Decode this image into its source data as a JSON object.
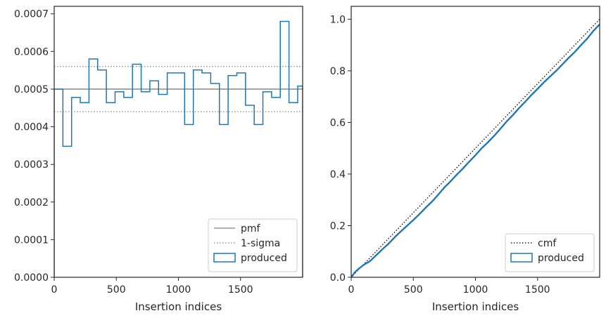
{
  "chart_data": [
    {
      "type": "histogram-step",
      "xlabel": "Insertion indices",
      "ylabel": "",
      "xlim": [
        0,
        2000
      ],
      "ylim": [
        0,
        0.00072
      ],
      "xticks": [
        0,
        500,
        1000,
        1500
      ],
      "xtick_labels": [
        "0",
        "500",
        "1000",
        "1500"
      ],
      "yticks": [
        0,
        0.0001,
        0.0002,
        0.0003,
        0.0004,
        0.0005,
        0.0006,
        0.0007
      ],
      "ytick_labels": [
        "0.0000",
        "0.0001",
        "0.0002",
        "0.0003",
        "0.0004",
        "0.0005",
        "0.0006",
        "0.0007"
      ],
      "grid": false,
      "legend_position": "lower-right",
      "legend": [
        "pmf",
        "1-sigma",
        "produced"
      ],
      "series": [
        {
          "name": "pmf",
          "style": "solid",
          "color": "#7f7f7f",
          "y": 0.0005
        },
        {
          "name": "1-sigma",
          "style": "dotted",
          "color": "#7f7f7f",
          "y": [
            0.00044,
            0.00056
          ]
        },
        {
          "name": "produced",
          "style": "step",
          "color": "#1f77b4",
          "bin_edges": [
            0,
            70,
            140,
            210,
            280,
            350,
            420,
            490,
            560,
            630,
            700,
            770,
            840,
            910,
            980,
            1050,
            1120,
            1190,
            1260,
            1330,
            1400,
            1470,
            1540,
            1610,
            1680,
            1750,
            1820,
            1890,
            1960,
            2000
          ],
          "values": [
            0.0005,
            0.000348,
            0.000478,
            0.000464,
            0.00058,
            0.000551,
            0.000464,
            0.000493,
            0.000478,
            0.000566,
            0.000493,
            0.000522,
            0.000486,
            0.000543,
            0.000543,
            0.000406,
            0.000551,
            0.000543,
            0.000515,
            0.000406,
            0.000536,
            0.000543,
            0.000457,
            0.000406,
            0.000493,
            0.000478,
            0.00068,
            0.000464,
            0.000508
          ]
        }
      ]
    },
    {
      "type": "line",
      "xlabel": "Insertion indices",
      "ylabel": "",
      "xlim": [
        0,
        2000
      ],
      "ylim": [
        0,
        1.05
      ],
      "xticks": [
        0,
        500,
        1000,
        1500
      ],
      "xtick_labels": [
        "0",
        "500",
        "1000",
        "1500"
      ],
      "yticks": [
        0,
        0.2,
        0.4,
        0.6,
        0.8,
        1.0
      ],
      "ytick_labels": [
        "0.0",
        "0.2",
        "0.4",
        "0.6",
        "0.8",
        "1.0"
      ],
      "grid": false,
      "legend_position": "lower-right",
      "legend": [
        "cmf",
        "produced"
      ],
      "series": [
        {
          "name": "cmf",
          "style": "dotted",
          "color": "#000000",
          "x": [
            0,
            2000
          ],
          "y": [
            0,
            1.0
          ]
        },
        {
          "name": "produced",
          "style": "solid",
          "color": "#1f77b4",
          "x": [
            0,
            30,
            60,
            100,
            150,
            200,
            250,
            300,
            350,
            400,
            450,
            500,
            550,
            600,
            650,
            700,
            750,
            800,
            850,
            900,
            950,
            1000,
            1050,
            1100,
            1150,
            1200,
            1250,
            1300,
            1350,
            1400,
            1450,
            1500,
            1550,
            1600,
            1650,
            1700,
            1750,
            1800,
            1850,
            1900,
            1950,
            2000
          ],
          "y": [
            0,
            0.02,
            0.033,
            0.048,
            0.062,
            0.085,
            0.108,
            0.13,
            0.155,
            0.178,
            0.2,
            0.222,
            0.245,
            0.27,
            0.293,
            0.32,
            0.348,
            0.372,
            0.398,
            0.422,
            0.448,
            0.473,
            0.5,
            0.523,
            0.548,
            0.575,
            0.603,
            0.628,
            0.655,
            0.68,
            0.706,
            0.73,
            0.755,
            0.778,
            0.8,
            0.825,
            0.85,
            0.873,
            0.9,
            0.925,
            0.955,
            0.98
          ]
        }
      ]
    }
  ]
}
